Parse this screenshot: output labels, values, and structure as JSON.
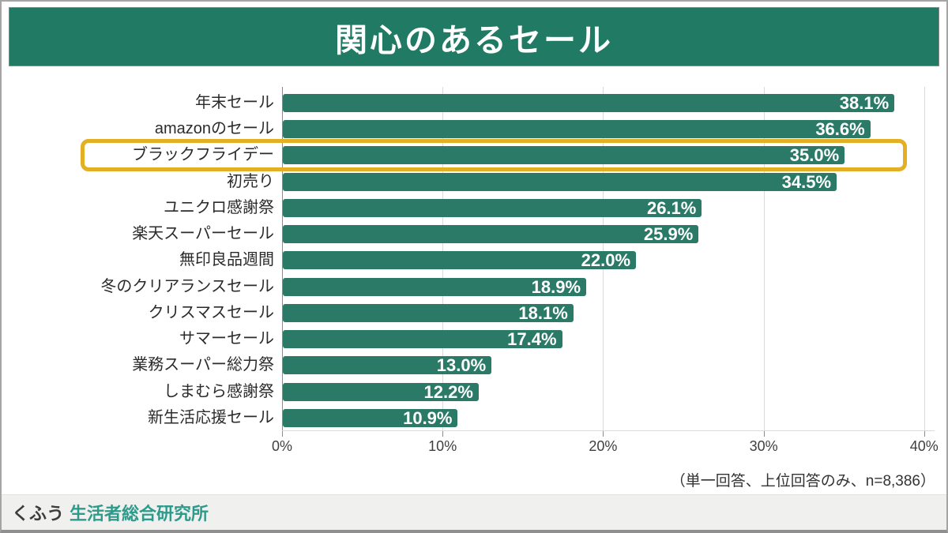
{
  "header": {
    "title": "関心のあるセール",
    "bg_color": "#217A64"
  },
  "note": "（単一回答、上位回答のみ、n=8,386）",
  "footer": {
    "brand": "くふう",
    "org": "生活者総合研究所"
  },
  "chart_data": {
    "type": "bar",
    "orientation": "horizontal",
    "title": "関心のあるセール",
    "categories": [
      "年末セール",
      "amazonのセール",
      "ブラックフライデー",
      "初売り",
      "ユニクロ感謝祭",
      "楽天スーパーセール",
      "無印良品週間",
      "冬のクリアランスセール",
      "クリスマスセール",
      "サマーセール",
      "業務スーパー総力祭",
      "しまむら感謝祭",
      "新生活応援セール"
    ],
    "values": [
      38.1,
      36.6,
      35.0,
      34.5,
      26.1,
      25.9,
      22.0,
      18.9,
      18.1,
      17.4,
      13.0,
      12.2,
      10.9
    ],
    "value_labels": [
      "38.1%",
      "36.6%",
      "35.0%",
      "34.5%",
      "26.1%",
      "25.9%",
      "22.0%",
      "18.9%",
      "18.1%",
      "17.4%",
      "13.0%",
      "12.2%",
      "10.9%"
    ],
    "highlighted_index": 2,
    "highlighted_category": "ブラックフライデー",
    "xlim": [
      0,
      40
    ],
    "x_ticks": [
      0,
      10,
      20,
      30,
      40
    ],
    "x_tick_labels": [
      "0%",
      "10%",
      "20%",
      "30%",
      "40%"
    ],
    "grid": true,
    "legend": false,
    "annotation": "（単一回答、上位回答のみ、n=8,386）",
    "colors": {
      "bar": "#2B7A67",
      "header": "#217A64",
      "highlight_border": "#E3B025",
      "value_text": "#FFFFFF",
      "label_text": "#2B2B2B",
      "gridline": "#DADADA",
      "axis": "#8C8C8C",
      "footer_bg": "#F0F0EE",
      "brand_text": "#3C3C3C",
      "org_text": "#2D9B8B"
    }
  }
}
